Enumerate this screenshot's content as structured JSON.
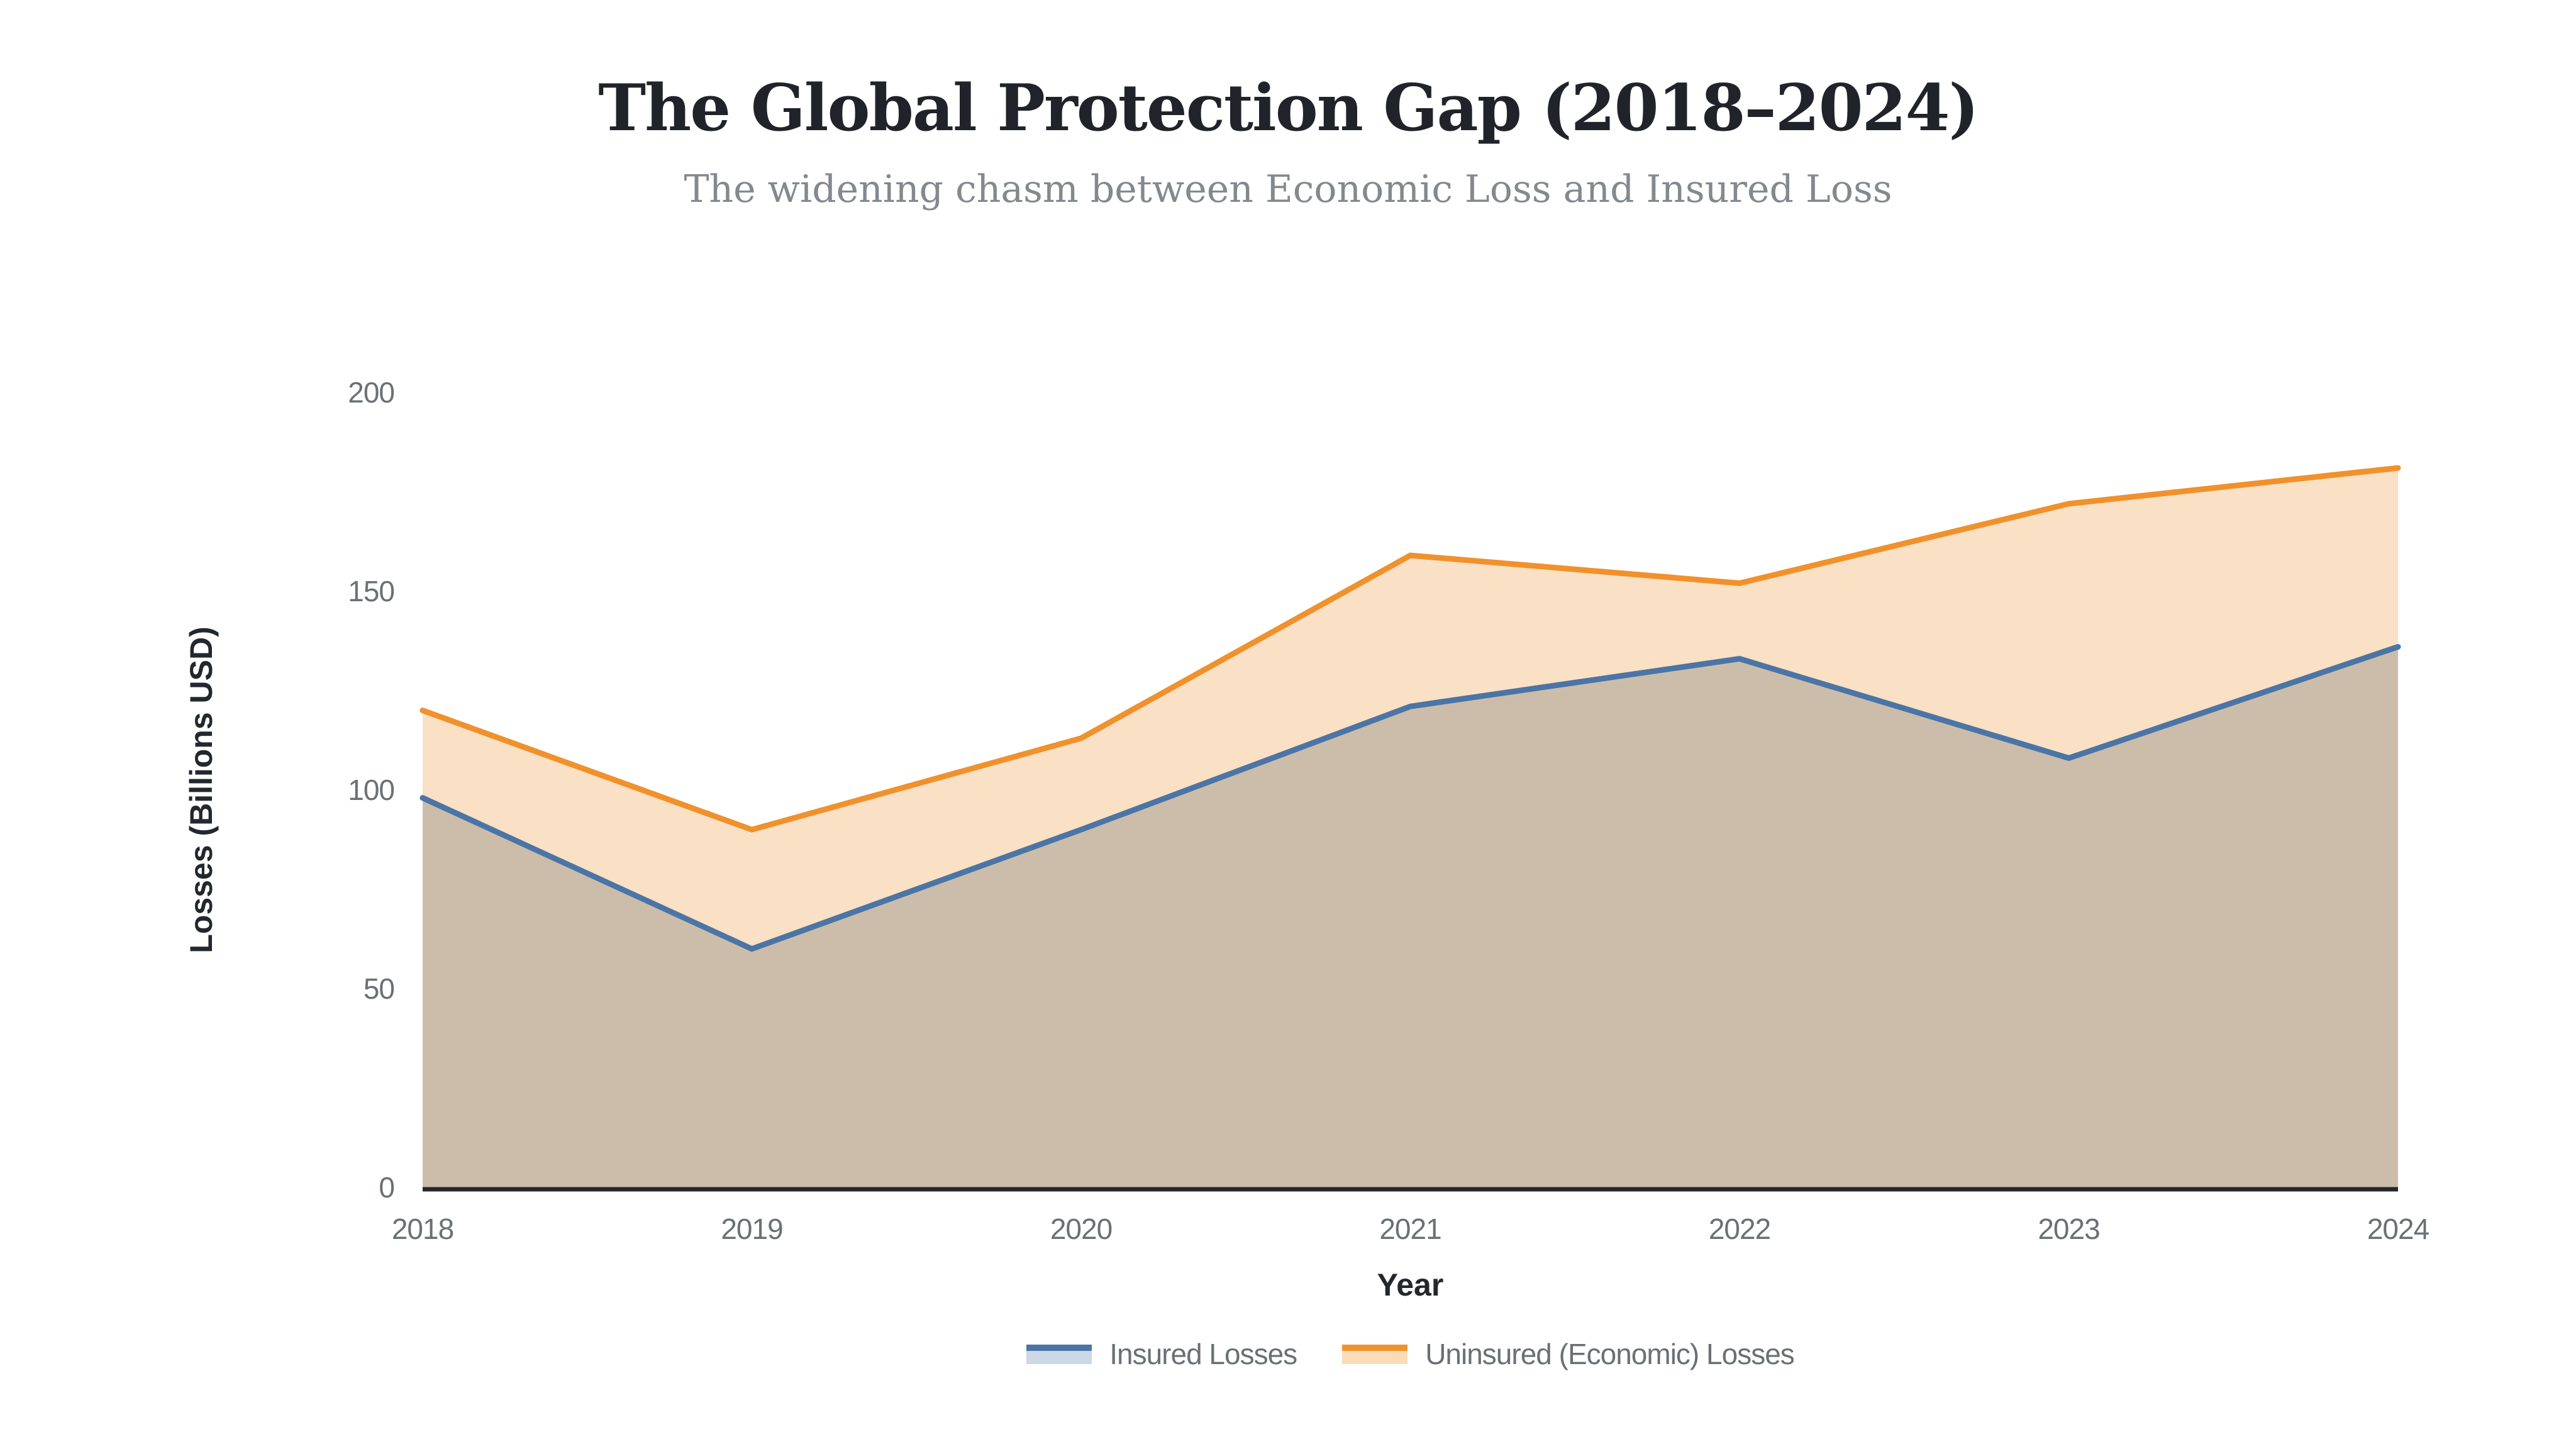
{
  "header": {
    "title": "The Global Protection Gap (2018–2024)",
    "subtitle": "The widening chasm between Economic Loss and Insured Loss"
  },
  "chart_data": {
    "type": "area",
    "title": "The Global Protection Gap (2018–2024)",
    "subtitle": "The widening chasm between Economic Loss and Insured Loss",
    "x": [
      2018,
      2019,
      2020,
      2021,
      2022,
      2023,
      2024
    ],
    "xlabel": "Year",
    "ylabel": "Losses (Billions USD)",
    "ylim": [
      0,
      200
    ],
    "yticks": [
      0,
      50,
      100,
      150,
      200
    ],
    "grid": false,
    "legend_position": "bottom",
    "series": [
      {
        "name": "Insured Losses",
        "values": [
          98,
          60,
          90,
          121,
          133,
          108,
          136
        ],
        "line_color": "#4a75a6",
        "area_color": "#ccbdaa",
        "legend_fill": "#ccd8e5"
      },
      {
        "name": "Uninsured (Economic) Losses",
        "values": [
          120,
          90,
          113,
          159,
          152,
          172,
          181
        ],
        "line_color": "#f0912c",
        "area_color": "#fae0c4",
        "legend_fill": "#fadcb8"
      }
    ],
    "colors": {
      "axis_line": "#24272b",
      "tick_text": "#6b7075",
      "axis_title_text": "#23272e",
      "title_text": "#20242a",
      "subtitle_text": "#84888f"
    }
  }
}
